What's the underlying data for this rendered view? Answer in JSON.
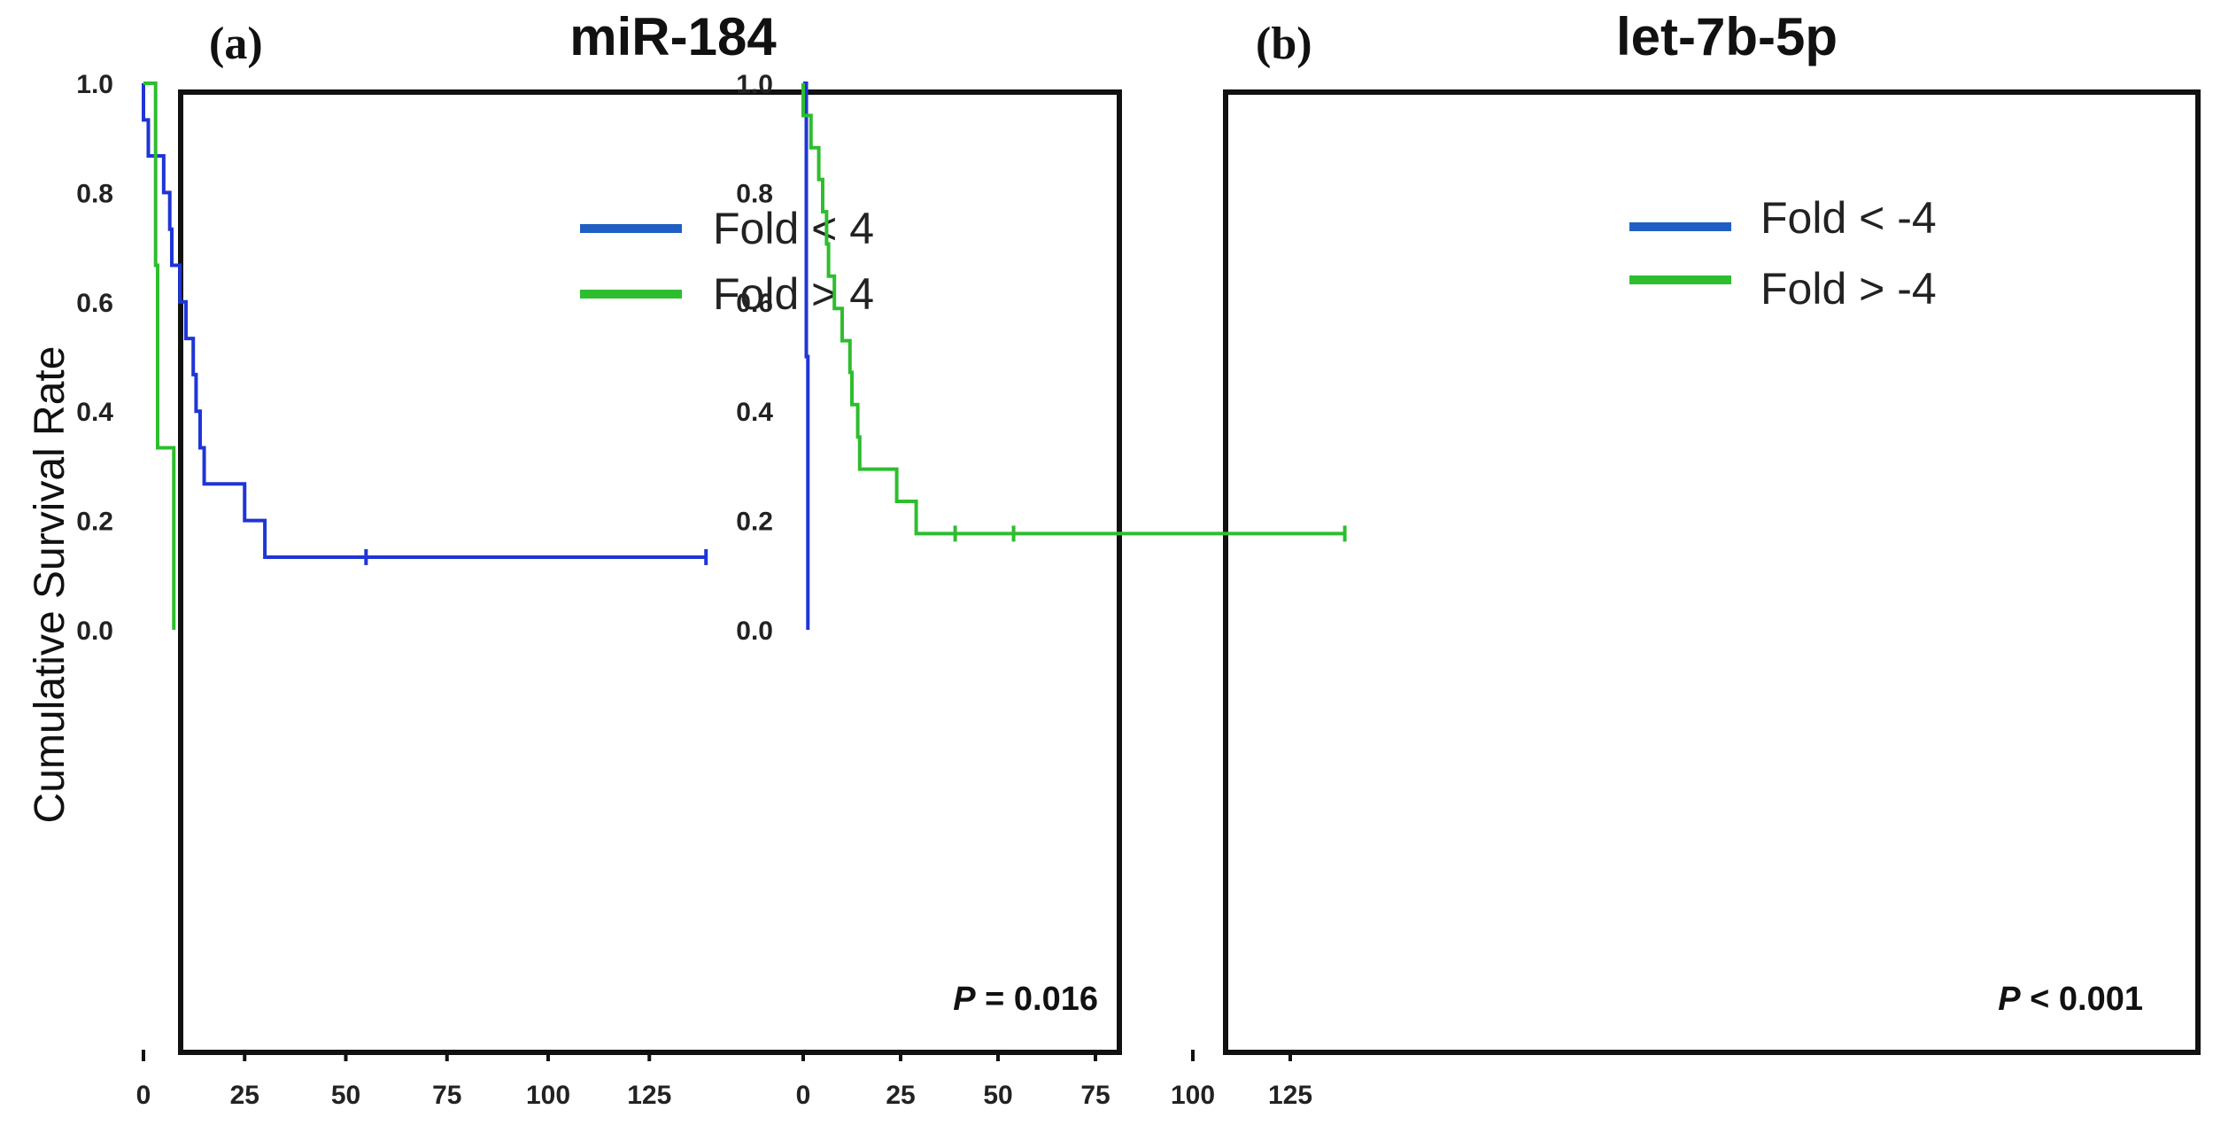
{
  "chart_data": [
    {
      "type": "line",
      "panel_letter": "(a)",
      "title": "miR-184",
      "ylabel": "Cumulative Survival Rate",
      "xlabel": "",
      "xlim": [
        -8,
        145
      ],
      "ylim": [
        -0.05,
        1.05
      ],
      "xticks": [
        0,
        25,
        50,
        75,
        100,
        125
      ],
      "yticks": [
        0.0,
        0.2,
        0.4,
        0.6,
        0.8,
        1.0
      ],
      "ytick_labels": [
        "0.0",
        "0.2",
        "0.4",
        "0.6",
        "0.8",
        "1.0"
      ],
      "legend_position": "top-center",
      "p_label": "P",
      "p_text": " = 0.016",
      "series": [
        {
          "name": "Fold < 4",
          "color": "#1f35d6",
          "legend_color": "#1f5fc4",
          "steps": [
            [
              0,
              1.0
            ],
            [
              0,
              0.933
            ],
            [
              1.2,
              0.867
            ],
            [
              5,
              0.8
            ],
            [
              6.5,
              0.733
            ],
            [
              7,
              0.667
            ],
            [
              9,
              0.6
            ],
            [
              10.5,
              0.533
            ],
            [
              12.3,
              0.467
            ],
            [
              13,
              0.4
            ],
            [
              14,
              0.333
            ],
            [
              15,
              0.267
            ],
            [
              25,
              0.2
            ],
            [
              30,
              0.133
            ],
            [
              139,
              0.133
            ]
          ],
          "censored": [
            [
              55,
              0.133
            ],
            [
              139,
              0.133
            ]
          ]
        },
        {
          "name": "Fold > 4",
          "color": "#2ebd2e",
          "legend_color": "#2ebd2e",
          "steps": [
            [
              0,
              1.0
            ],
            [
              3,
              0.667
            ],
            [
              3.5,
              0.333
            ],
            [
              7.5,
              0.0
            ]
          ],
          "censored": []
        }
      ]
    },
    {
      "type": "line",
      "panel_letter": "(b)",
      "title": "let-7b-5p",
      "ylabel": "",
      "xlabel": "",
      "xlim": [
        -8,
        145
      ],
      "ylim": [
        -0.05,
        1.05
      ],
      "xticks": [
        0,
        25,
        50,
        75,
        100,
        125
      ],
      "yticks": [
        0.0,
        0.2,
        0.4,
        0.6,
        0.8,
        1.0
      ],
      "ytick_labels": [
        "0.0",
        "0.2",
        "0.4",
        "0.6",
        "0.8",
        "1.0"
      ],
      "legend_position": "top-center",
      "p_label": "P",
      "p_text": " < 0.001",
      "series": [
        {
          "name": "Fold < -4",
          "color": "#1f35d6",
          "legend_color": "#1f5fc4",
          "steps": [
            [
              0,
              1.0
            ],
            [
              0.8,
              0.5
            ],
            [
              1.2,
              0.0
            ]
          ],
          "censored": []
        },
        {
          "name": "Fold > -4",
          "color": "#2ebd2e",
          "legend_color": "#2ebd2e",
          "steps": [
            [
              0,
              1.0
            ],
            [
              0,
              0.941
            ],
            [
              2,
              0.882
            ],
            [
              4,
              0.824
            ],
            [
              5,
              0.765
            ],
            [
              6,
              0.706
            ],
            [
              6.5,
              0.647
            ],
            [
              8,
              0.588
            ],
            [
              10,
              0.529
            ],
            [
              12,
              0.471
            ],
            [
              12.5,
              0.412
            ],
            [
              14,
              0.353
            ],
            [
              14.5,
              0.294
            ],
            [
              24,
              0.235
            ],
            [
              29,
              0.176
            ],
            [
              139,
              0.176
            ]
          ],
          "censored": [
            [
              39,
              0.176
            ],
            [
              54,
              0.176
            ],
            [
              139,
              0.176
            ]
          ]
        }
      ]
    }
  ]
}
